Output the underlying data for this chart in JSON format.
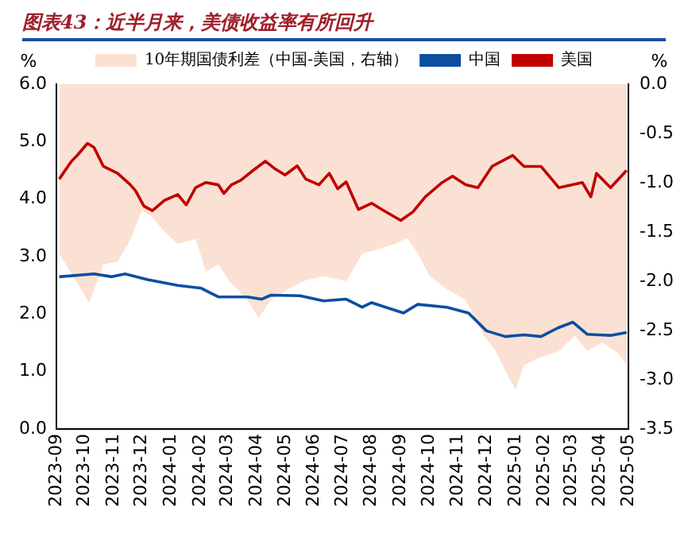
{
  "chart_data": {
    "type": "line",
    "title": "图表43：近半月来，美债收益率有所回升",
    "ylabel": "%",
    "y2label": "%",
    "xlim": [
      "2023-09",
      "2025-05"
    ],
    "xticks": [
      "2023-09",
      "2023-10",
      "2023-11",
      "2023-12",
      "2024-01",
      "2024-02",
      "2024-03",
      "2024-04",
      "2024-05",
      "2024-06",
      "2024-07",
      "2024-08",
      "2024-09",
      "2024-10",
      "2024-11",
      "2024-12",
      "2025-01",
      "2025-02",
      "2025-03",
      "2025-04",
      "2025-05"
    ],
    "ylim": [
      0,
      6
    ],
    "yticks": [
      {
        "value": 0,
        "label": "0.0"
      },
      {
        "value": 1,
        "label": "1.0"
      },
      {
        "value": 2,
        "label": "2.0"
      },
      {
        "value": 3,
        "label": "3.0"
      },
      {
        "value": 4,
        "label": "4.0"
      },
      {
        "value": 5,
        "label": "5.0"
      },
      {
        "value": 6,
        "label": "6.0"
      }
    ],
    "y2lim": [
      -3.5,
      0
    ],
    "y2ticks": [
      {
        "value": -3.5,
        "label": "-3.5"
      },
      {
        "value": -3,
        "label": "-3.0"
      },
      {
        "value": -2.5,
        "label": "-2.5"
      },
      {
        "value": -2,
        "label": "-2.0"
      },
      {
        "value": -1.5,
        "label": "-1.5"
      },
      {
        "value": -1,
        "label": "-1.0"
      },
      {
        "value": -0.5,
        "label": "-0.5"
      },
      {
        "value": 0,
        "label": "0.0"
      }
    ],
    "legend": "top",
    "grid": false,
    "marker": "none",
    "line_style": "solid",
    "series": [
      {
        "name": "10年期国债利差（中国-美国，右轴）",
        "type": "area",
        "axis": "y2",
        "color": "#fbe1d3",
        "x": [
          "2023-09-04",
          "2023-10-06",
          "2023-10-21",
          "2023-11-05",
          "2023-11-18",
          "2023-12-01",
          "2023-12-12",
          "2023-12-25",
          "2024-01-08",
          "2024-01-27",
          "2024-02-07",
          "2024-02-20",
          "2024-03-03",
          "2024-03-22",
          "2024-04-03",
          "2024-04-16",
          "2024-05-04",
          "2024-05-23",
          "2024-06-11",
          "2024-07-05",
          "2024-07-22",
          "2024-08-07",
          "2024-08-26",
          "2024-09-08",
          "2024-09-19",
          "2024-10-02",
          "2024-10-20",
          "2024-11-09",
          "2024-11-28",
          "2024-12-11",
          "2024-12-21",
          "2025-01-01",
          "2025-01-10",
          "2025-01-28",
          "2025-02-16",
          "2025-03-05",
          "2025-03-18",
          "2025-04-03",
          "2025-04-20",
          "2025-04-29"
        ],
        "values": [
          -1.72,
          -2.22,
          -1.83,
          -1.8,
          -1.59,
          -1.28,
          -1.35,
          -1.5,
          -1.62,
          -1.57,
          -1.9,
          -1.83,
          -2.0,
          -2.19,
          -2.37,
          -2.19,
          -2.08,
          -1.99,
          -1.95,
          -2.0,
          -1.72,
          -1.68,
          -1.62,
          -1.56,
          -1.72,
          -1.95,
          -2.08,
          -2.19,
          -2.55,
          -2.71,
          -2.91,
          -3.1,
          -2.85,
          -2.77,
          -2.71,
          -2.55,
          -2.71,
          -2.62,
          -2.73,
          -2.85
        ]
      },
      {
        "name": "中国",
        "type": "line",
        "color": "#0b4ea2",
        "x": [
          "2023-09-04",
          "2023-10-11",
          "2023-10-30",
          "2023-11-13",
          "2023-12-07",
          "2024-01-08",
          "2024-02-02",
          "2024-02-20",
          "2024-03-22",
          "2024-04-06",
          "2024-04-16",
          "2024-05-17",
          "2024-06-11",
          "2024-07-05",
          "2024-07-22",
          "2024-08-01",
          "2024-09-04",
          "2024-09-19",
          "2024-10-20",
          "2024-11-12",
          "2024-12-01",
          "2024-12-21",
          "2025-01-10",
          "2025-01-28",
          "2025-02-15",
          "2025-03-03",
          "2025-03-18",
          "2025-04-12",
          "2025-04-29"
        ],
        "values": [
          2.65,
          2.7,
          2.65,
          2.7,
          2.6,
          2.5,
          2.45,
          2.3,
          2.3,
          2.26,
          2.33,
          2.32,
          2.23,
          2.26,
          2.12,
          2.2,
          2.02,
          2.17,
          2.12,
          2.02,
          1.71,
          1.61,
          1.64,
          1.61,
          1.76,
          1.86,
          1.65,
          1.63,
          1.68
        ]
      },
      {
        "name": "美国",
        "type": "line",
        "color": "#c00000",
        "x": [
          "2023-09-04",
          "2023-09-17",
          "2023-09-23",
          "2023-10-04",
          "2023-10-11",
          "2023-10-21",
          "2023-11-05",
          "2023-11-18",
          "2023-11-24",
          "2023-12-03",
          "2023-12-12",
          "2023-12-25",
          "2024-01-08",
          "2024-01-17",
          "2024-01-27",
          "2024-02-07",
          "2024-02-20",
          "2024-02-26",
          "2024-03-05",
          "2024-03-15",
          "2024-03-28",
          "2024-04-10",
          "2024-04-21",
          "2024-05-01",
          "2024-05-14",
          "2024-05-23",
          "2024-06-06",
          "2024-06-17",
          "2024-06-26",
          "2024-07-05",
          "2024-07-18",
          "2024-08-01",
          "2024-08-12",
          "2024-09-01",
          "2024-09-14",
          "2024-09-27",
          "2024-10-15",
          "2024-10-26",
          "2024-11-09",
          "2024-11-22",
          "2024-12-07",
          "2024-12-29",
          "2025-01-10",
          "2025-01-28",
          "2025-02-16",
          "2025-03-13",
          "2025-03-22",
          "2025-03-28",
          "2025-04-12",
          "2025-04-29"
        ],
        "values": [
          4.35,
          4.66,
          4.76,
          4.97,
          4.9,
          4.57,
          4.45,
          4.26,
          4.15,
          3.88,
          3.8,
          3.98,
          4.08,
          3.9,
          4.2,
          4.29,
          4.25,
          4.1,
          4.25,
          4.33,
          4.5,
          4.66,
          4.52,
          4.42,
          4.58,
          4.35,
          4.25,
          4.45,
          4.18,
          4.3,
          3.82,
          3.93,
          3.82,
          3.63,
          3.78,
          4.04,
          4.29,
          4.4,
          4.25,
          4.2,
          4.57,
          4.76,
          4.57,
          4.57,
          4.2,
          4.29,
          4.04,
          4.45,
          4.2,
          4.5
        ]
      }
    ]
  }
}
